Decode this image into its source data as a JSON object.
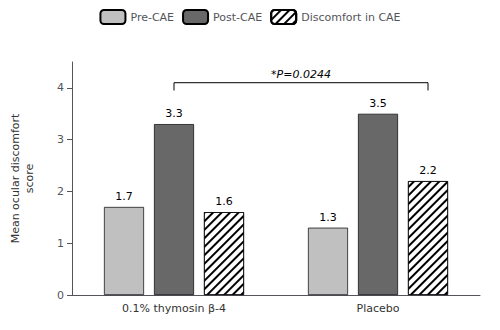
{
  "chart_data": {
    "type": "bar",
    "categories": [
      "0.1% thymosin β-4",
      "Placebo"
    ],
    "series": [
      {
        "name": "Pre-CAE",
        "color": "#c0c0c0",
        "values": [
          1.7,
          1.3
        ]
      },
      {
        "name": "Post-CAE",
        "color": "#686868",
        "values": [
          3.3,
          3.5
        ]
      },
      {
        "name": "Discomfort in CAE",
        "color": "#ffffff",
        "values": [
          1.6,
          2.2
        ]
      }
    ],
    "ylabel": "Mean ocular discomfort\nscore",
    "ylim": [
      0,
      4.5
    ],
    "yticks": [
      0,
      1,
      2,
      3,
      4
    ],
    "data_labels": true,
    "legend": "top",
    "grid": false,
    "annotations": [
      {
        "text": "*P=0.0244",
        "from": {
          "category": "0.1% thymosin β-4",
          "series": "Post-CAE"
        },
        "to": {
          "category": "Placebo",
          "series": "Discomfort in CAE"
        },
        "y": 4.1,
        "y_drop": 3.95
      }
    ]
  }
}
